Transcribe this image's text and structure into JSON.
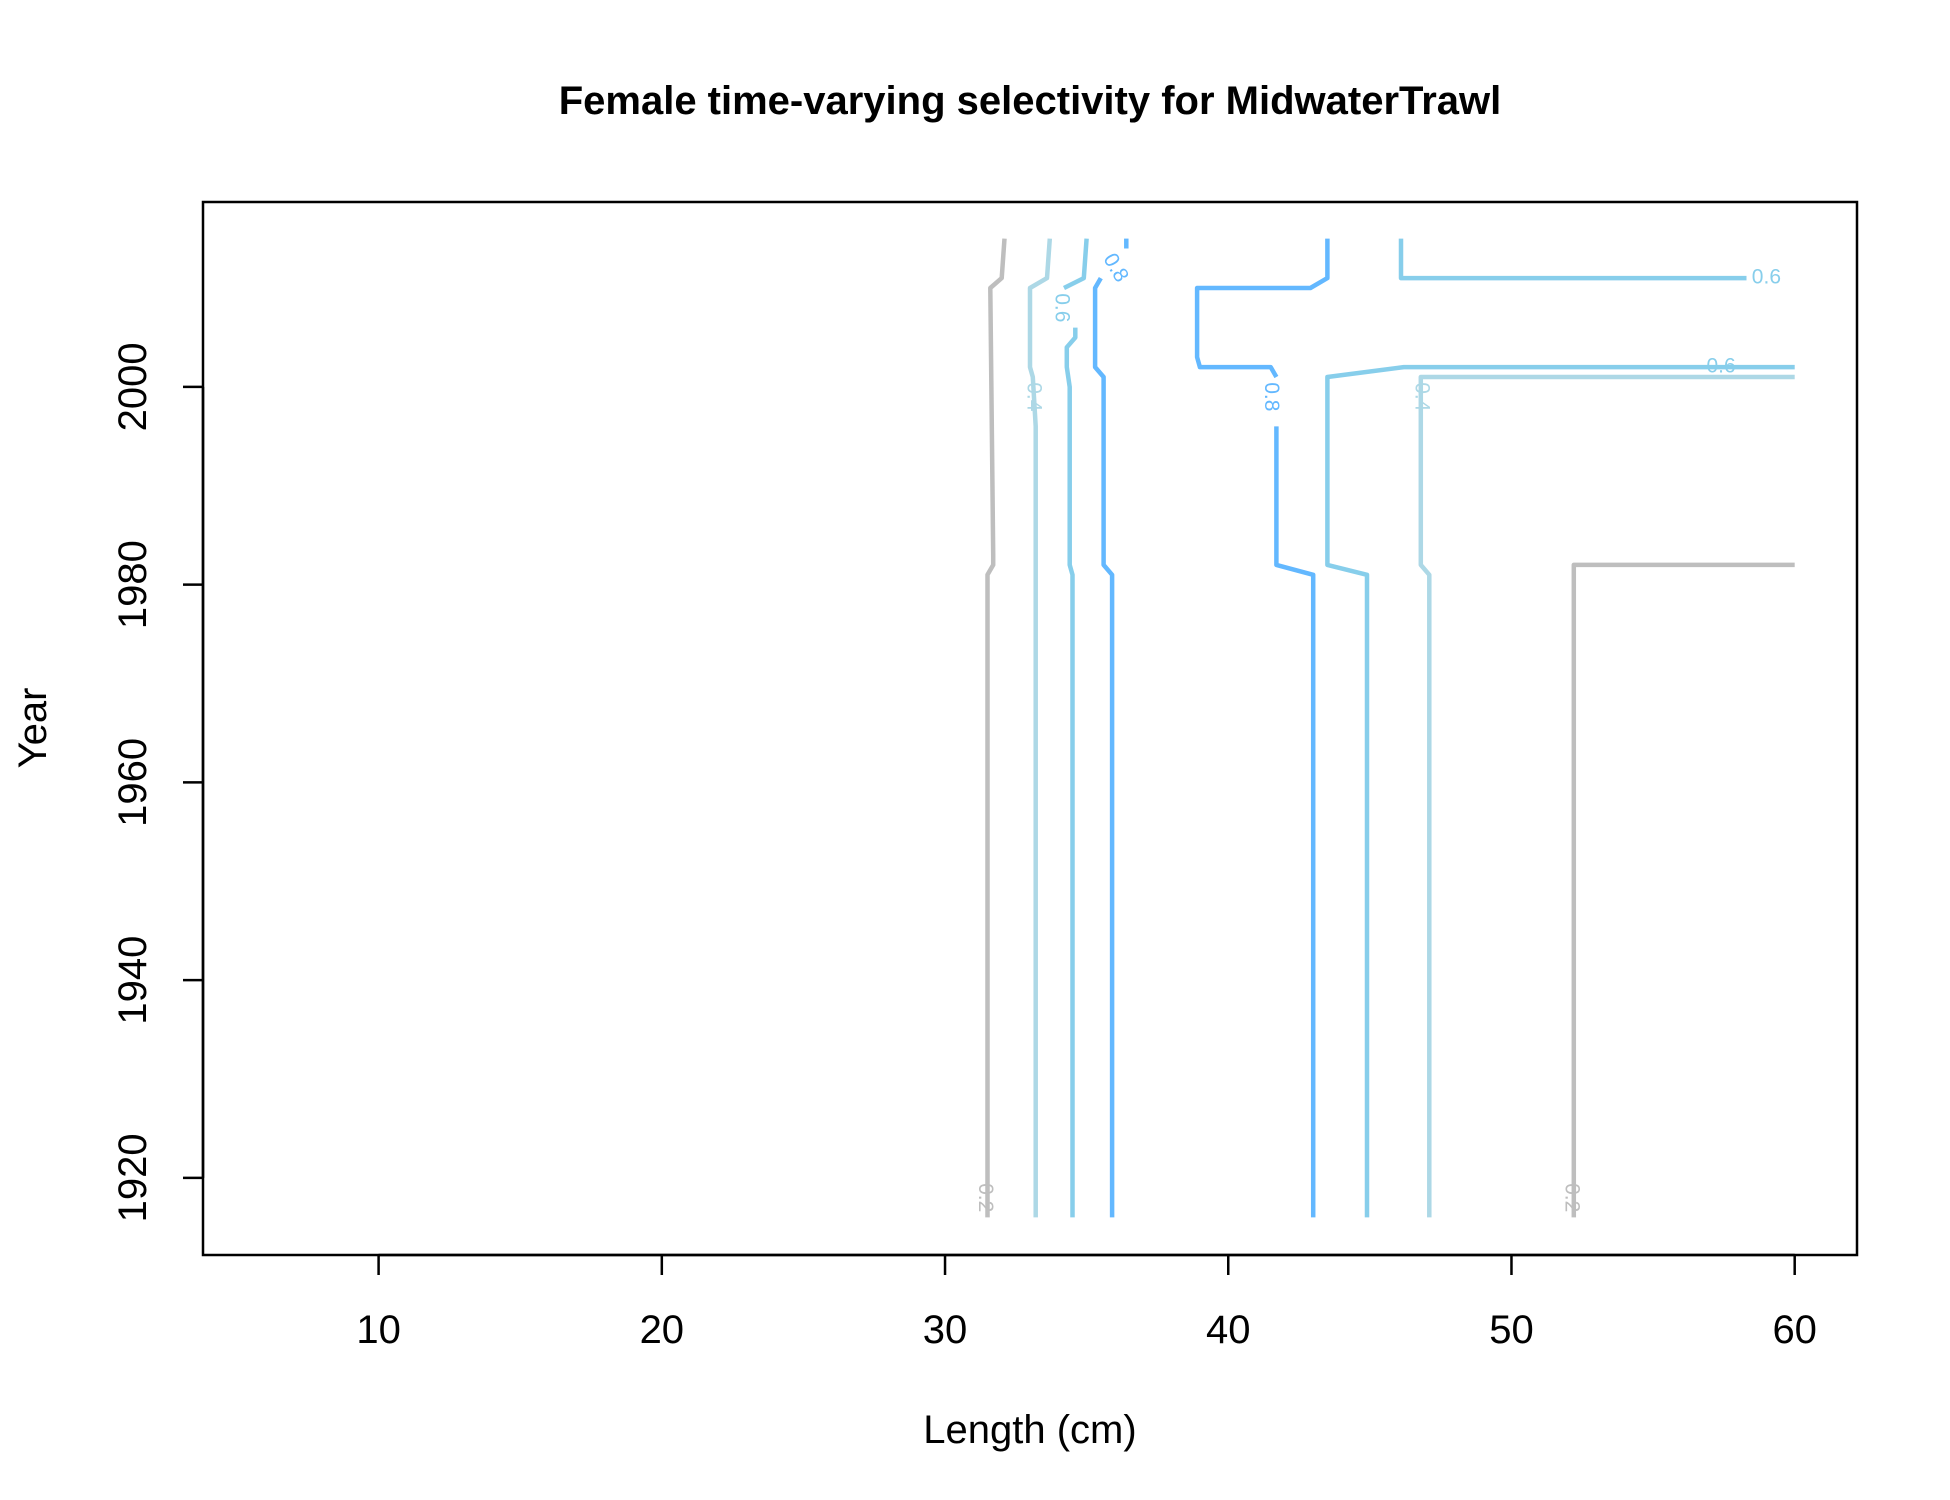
{
  "chart_data": {
    "type": "contour",
    "title": "Female time-varying selectivity for MidwaterTrawl",
    "xlabel": "Length (cm)",
    "ylabel": "Year",
    "xlim": [
      3.8,
      62.2
    ],
    "ylim": [
      1912.2,
      2018.7
    ],
    "xticks": [
      10,
      20,
      30,
      40,
      50,
      60
    ],
    "yticks": [
      1920,
      1940,
      1960,
      1980,
      2000
    ],
    "grid": false,
    "levels": [
      {
        "name": "0.2",
        "color": "#bebebe",
        "paths": [
          [
            [
              31.5,
              1916
            ],
            [
              31.5,
              1981
            ],
            [
              31.7,
              1982
            ],
            [
              31.7,
              1983
            ],
            [
              31.6,
              2010
            ],
            [
              32.0,
              2011
            ],
            [
              32.1,
              2015
            ]
          ],
          [
            [
              52.2,
              1916
            ],
            [
              52.2,
              1982
            ],
            [
              54.1,
              1982
            ],
            [
              60,
              1982
            ]
          ]
        ],
        "labels": [
          {
            "text": "0.2",
            "x": 31.4,
            "y": 1918,
            "rotate": 90
          },
          {
            "text": "0.2",
            "x": 52.1,
            "y": 1918,
            "rotate": 90
          }
        ]
      },
      {
        "name": "0.4",
        "color": "#add8e6",
        "paths": [
          [
            [
              33.2,
              1916
            ],
            [
              33.2,
              1996
            ],
            [
              33.1,
              2001
            ],
            [
              33.0,
              2002
            ],
            [
              33.0,
              2010
            ],
            [
              33.6,
              2011
            ],
            [
              33.7,
              2015
            ]
          ],
          [
            [
              47.1,
              1916
            ],
            [
              47.1,
              1981
            ],
            [
              46.8,
              1982
            ],
            [
              46.8,
              1996
            ],
            [
              46.8,
              2001
            ],
            [
              60,
              2001
            ]
          ]
        ],
        "labels": [
          {
            "text": "0.4",
            "x": 33.1,
            "y": 1999,
            "rotate": 90
          },
          {
            "text": "0.4",
            "x": 46.8,
            "y": 1999,
            "rotate": 90
          }
        ]
      },
      {
        "name": "0.6",
        "color": "#87ceeb",
        "paths": [
          [
            [
              34.5,
              1916
            ],
            [
              34.5,
              1981
            ],
            [
              34.4,
              1982
            ],
            [
              34.4,
              2000
            ],
            [
              34.3,
              2002
            ],
            [
              34.3,
              2004
            ],
            [
              34.6,
              2005
            ],
            [
              34.6,
              2006
            ]
          ],
          [
            [
              34.2,
              2010
            ],
            [
              34.9,
              2011
            ],
            [
              35.0,
              2015
            ]
          ],
          [
            [
              44.9,
              1916
            ],
            [
              44.9,
              1981
            ],
            [
              43.5,
              1982
            ],
            [
              43.5,
              2001
            ],
            [
              46.2,
              2002
            ],
            [
              47.0,
              2002
            ],
            [
              60,
              2002
            ]
          ],
          [
            [
              46.1,
              2015
            ],
            [
              46.1,
              2011
            ],
            [
              46.3,
              2011
            ],
            [
              50.0,
              2011
            ],
            [
              58.3,
              2011
            ]
          ]
        ],
        "labels": [
          {
            "text": "0.6",
            "x": 34.1,
            "y": 2008,
            "rotate": 90
          },
          {
            "text": "0.6",
            "x": 59.0,
            "y": 2011,
            "rotate": 0
          },
          {
            "text": "0.6",
            "x": 57.4,
            "y": 2002,
            "rotate": 0
          }
        ]
      },
      {
        "name": "0.8",
        "color": "#63b8ff",
        "paths": [
          [
            [
              35.9,
              1916
            ],
            [
              35.9,
              1981
            ],
            [
              35.6,
              1982
            ],
            [
              35.6,
              2001
            ],
            [
              35.3,
              2002
            ],
            [
              35.3,
              2010
            ],
            [
              35.5,
              2011
            ]
          ],
          [
            [
              36.4,
              2014
            ],
            [
              36.4,
              2015
            ]
          ],
          [
            [
              43.0,
              1916
            ],
            [
              43.0,
              1981
            ],
            [
              41.7,
              1982
            ],
            [
              41.7,
              1996
            ]
          ],
          [
            [
              41.7,
              2001
            ],
            [
              41.5,
              2002
            ],
            [
              40.9,
              2002
            ],
            [
              39.0,
              2002
            ],
            [
              38.9,
              2003
            ],
            [
              38.9,
              2010
            ],
            [
              39.1,
              2010
            ],
            [
              42.9,
              2010
            ],
            [
              43.5,
              2011
            ],
            [
              43.5,
              2015
            ]
          ]
        ],
        "labels": [
          {
            "text": "0.8",
            "x": 36.0,
            "y": 2012,
            "rotate": 60
          },
          {
            "text": "0.8",
            "x": 41.5,
            "y": 1999,
            "rotate": 90
          }
        ]
      }
    ]
  }
}
